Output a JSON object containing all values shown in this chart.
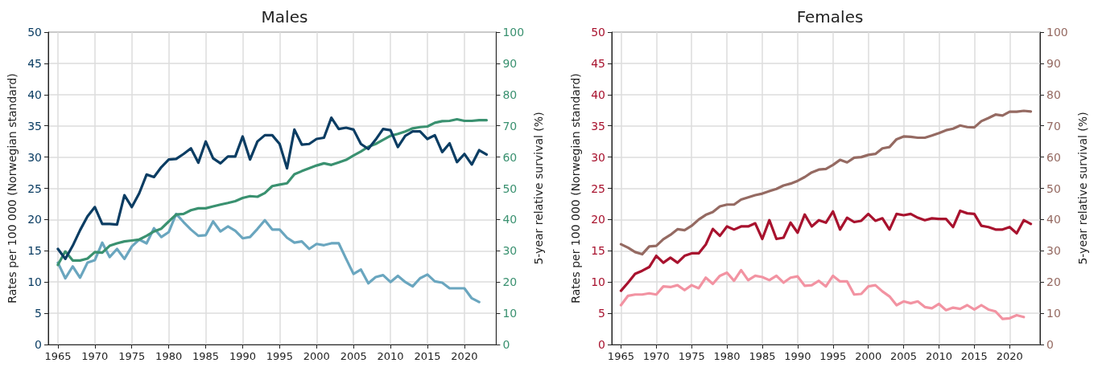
{
  "chart_data": [
    {
      "type": "line",
      "title": "Males",
      "ylabel": "Rates per 100 000 (Norwegian standard)",
      "y2label": "5-year relative survival (%)",
      "x": [
        1965,
        1966,
        1967,
        1968,
        1969,
        1970,
        1971,
        1972,
        1973,
        1974,
        1975,
        1976,
        1977,
        1978,
        1979,
        1980,
        1981,
        1982,
        1983,
        1984,
        1985,
        1986,
        1987,
        1988,
        1989,
        1990,
        1991,
        1992,
        1993,
        1994,
        1995,
        1996,
        1997,
        1998,
        1999,
        2000,
        2001,
        2002,
        2003,
        2004,
        2005,
        2006,
        2007,
        2008,
        2009,
        2010,
        2011,
        2012,
        2013,
        2014,
        2015,
        2016,
        2017,
        2018,
        2019,
        2020,
        2021,
        2022,
        2023
      ],
      "xlim": [
        1963.7,
        2024.3
      ],
      "xticks": [
        1965,
        1970,
        1975,
        1980,
        1985,
        1990,
        1995,
        2000,
        2005,
        2010,
        2015,
        2020
      ],
      "ylim": [
        0,
        50
      ],
      "yticks": [
        0,
        5,
        10,
        15,
        20,
        25,
        30,
        35,
        40,
        45,
        50
      ],
      "y2lim": [
        0,
        100
      ],
      "y2ticks": [
        0,
        10,
        20,
        30,
        40,
        50,
        60,
        70,
        80,
        90,
        100
      ],
      "grid": true,
      "marker": "none",
      "series": [
        {
          "color": "#6aa6bf",
          "values": [
            13.1,
            10.6,
            12.5,
            10.7,
            13.1,
            13.5,
            16.3,
            14.0,
            15.3,
            13.7,
            15.7,
            16.8,
            16.2,
            18.6,
            17.2,
            18.0,
            20.9,
            19.6,
            18.4,
            17.4,
            17.5,
            19.7,
            18.1,
            18.9,
            18.2,
            17.0,
            17.2,
            18.5,
            19.9,
            18.4,
            18.4,
            17.1,
            16.3,
            16.5,
            15.3,
            16.1,
            15.9,
            16.2,
            16.2,
            13.7,
            11.3,
            12.0,
            9.8,
            10.8,
            11.1,
            10.0,
            11.0,
            10.0,
            9.3,
            10.6,
            11.2,
            10.1,
            9.9,
            9.0,
            9.0,
            9.0,
            7.4,
            6.8,
            null
          ]
        },
        {
          "color": "#3a9170",
          "axis": "y2",
          "values": [
            25.5,
            29.8,
            26.9,
            26.9,
            27.5,
            29.6,
            29.4,
            31.6,
            32.4,
            33.0,
            33.3,
            33.6,
            34.8,
            36.2,
            37.1,
            39.4,
            41.6,
            41.8,
            43.0,
            43.6,
            43.6,
            44.2,
            44.8,
            45.3,
            45.9,
            46.9,
            47.5,
            47.3,
            48.5,
            50.7,
            51.2,
            51.6,
            54.5,
            55.5,
            56.4,
            57.3,
            58.0,
            57.5,
            58.3,
            59.1,
            60.5,
            61.8,
            63.3,
            64.2,
            65.5,
            66.8,
            67.4,
            68.2,
            69.2,
            69.6,
            69.8,
            71.0,
            71.5,
            71.6,
            72.1,
            71.6,
            71.6,
            71.8,
            71.8
          ]
        },
        {
          "color": "#0b3d63",
          "values": [
            15.3,
            13.7,
            15.8,
            18.3,
            20.5,
            22.0,
            19.3,
            19.3,
            19.2,
            23.9,
            22.0,
            24.2,
            27.2,
            26.8,
            28.4,
            29.6,
            29.7,
            30.5,
            31.4,
            29.1,
            32.5,
            29.8,
            29.0,
            30.1,
            30.1,
            33.3,
            29.6,
            32.5,
            33.5,
            33.5,
            32.1,
            28.2,
            34.4,
            32.0,
            32.1,
            32.9,
            33.1,
            36.3,
            34.5,
            34.7,
            34.4,
            32.1,
            31.3,
            32.8,
            34.5,
            34.3,
            31.6,
            33.4,
            34.1,
            34.1,
            32.9,
            33.5,
            30.8,
            32.2,
            29.2,
            30.5,
            28.8,
            31.1,
            30.4
          ]
        }
      ]
    },
    {
      "type": "line",
      "title": "Females",
      "ylabel": "Rates per 100 000 (Norwegian standard)",
      "y2label": "5-year relative survival (%)",
      "x": [
        1965,
        1966,
        1967,
        1968,
        1969,
        1970,
        1971,
        1972,
        1973,
        1974,
        1975,
        1976,
        1977,
        1978,
        1979,
        1980,
        1981,
        1982,
        1983,
        1984,
        1985,
        1986,
        1987,
        1988,
        1989,
        1990,
        1991,
        1992,
        1993,
        1994,
        1995,
        1996,
        1997,
        1998,
        1999,
        2000,
        2001,
        2002,
        2003,
        2004,
        2005,
        2006,
        2007,
        2008,
        2009,
        2010,
        2011,
        2012,
        2013,
        2014,
        2015,
        2016,
        2017,
        2018,
        2019,
        2020,
        2021,
        2022,
        2023
      ],
      "xlim": [
        1963.7,
        2024.3
      ],
      "xticks": [
        1965,
        1970,
        1975,
        1980,
        1985,
        1990,
        1995,
        2000,
        2005,
        2010,
        2015,
        2020
      ],
      "ylim": [
        0,
        50
      ],
      "yticks": [
        0,
        5,
        10,
        15,
        20,
        25,
        30,
        35,
        40,
        45,
        50
      ],
      "y2lim": [
        0,
        100
      ],
      "y2ticks": [
        0,
        10,
        20,
        30,
        40,
        50,
        60,
        70,
        80,
        90,
        100
      ],
      "grid": true,
      "marker": "none",
      "series": [
        {
          "color": "#f293a2",
          "values": [
            6.3,
            7.8,
            8.0,
            8.0,
            8.2,
            8.0,
            9.3,
            9.2,
            9.5,
            8.7,
            9.5,
            9.0,
            10.7,
            9.7,
            11.0,
            11.5,
            10.2,
            11.9,
            10.3,
            11.0,
            10.8,
            10.3,
            11.0,
            9.9,
            10.7,
            10.9,
            9.4,
            9.5,
            10.2,
            9.3,
            11.0,
            10.1,
            10.1,
            8.0,
            8.1,
            9.3,
            9.5,
            8.5,
            7.7,
            6.3,
            6.9,
            6.6,
            6.9,
            6.0,
            5.8,
            6.5,
            5.5,
            5.9,
            5.7,
            6.3,
            5.6,
            6.3,
            5.6,
            5.3,
            4.1,
            4.2,
            4.7,
            4.4,
            null
          ]
        },
        {
          "color": "#956a62",
          "axis": "y2",
          "values": [
            32.1,
            31.0,
            29.6,
            28.9,
            31.4,
            31.6,
            33.7,
            35.1,
            36.9,
            36.6,
            38.0,
            40.0,
            41.5,
            42.4,
            44.2,
            44.8,
            44.8,
            46.4,
            47.1,
            47.8,
            48.3,
            49.1,
            49.8,
            50.9,
            51.5,
            52.4,
            53.6,
            55.1,
            56.0,
            56.2,
            57.5,
            59.1,
            58.3,
            59.8,
            60.0,
            60.7,
            61.0,
            62.8,
            63.2,
            65.7,
            66.6,
            66.5,
            66.2,
            66.2,
            66.9,
            67.7,
            68.6,
            69.1,
            70.1,
            69.6,
            69.5,
            71.5,
            72.5,
            73.6,
            73.3,
            74.5,
            74.5,
            74.8,
            74.6
          ]
        },
        {
          "color": "#a8122e",
          "values": [
            8.6,
            9.9,
            11.3,
            11.8,
            12.4,
            14.2,
            13.1,
            13.9,
            13.1,
            14.2,
            14.6,
            14.6,
            16.0,
            18.5,
            17.4,
            18.9,
            18.4,
            18.9,
            18.9,
            19.4,
            16.9,
            19.9,
            16.9,
            17.1,
            19.5,
            17.9,
            20.8,
            18.9,
            19.9,
            19.5,
            21.3,
            18.4,
            20.3,
            19.6,
            19.8,
            20.9,
            19.8,
            20.2,
            18.4,
            20.9,
            20.7,
            20.9,
            20.3,
            19.9,
            20.2,
            20.1,
            20.1,
            18.8,
            21.4,
            21.0,
            20.9,
            19.0,
            18.8,
            18.4,
            18.4,
            18.8,
            17.8,
            19.9,
            19.3
          ]
        }
      ]
    }
  ]
}
